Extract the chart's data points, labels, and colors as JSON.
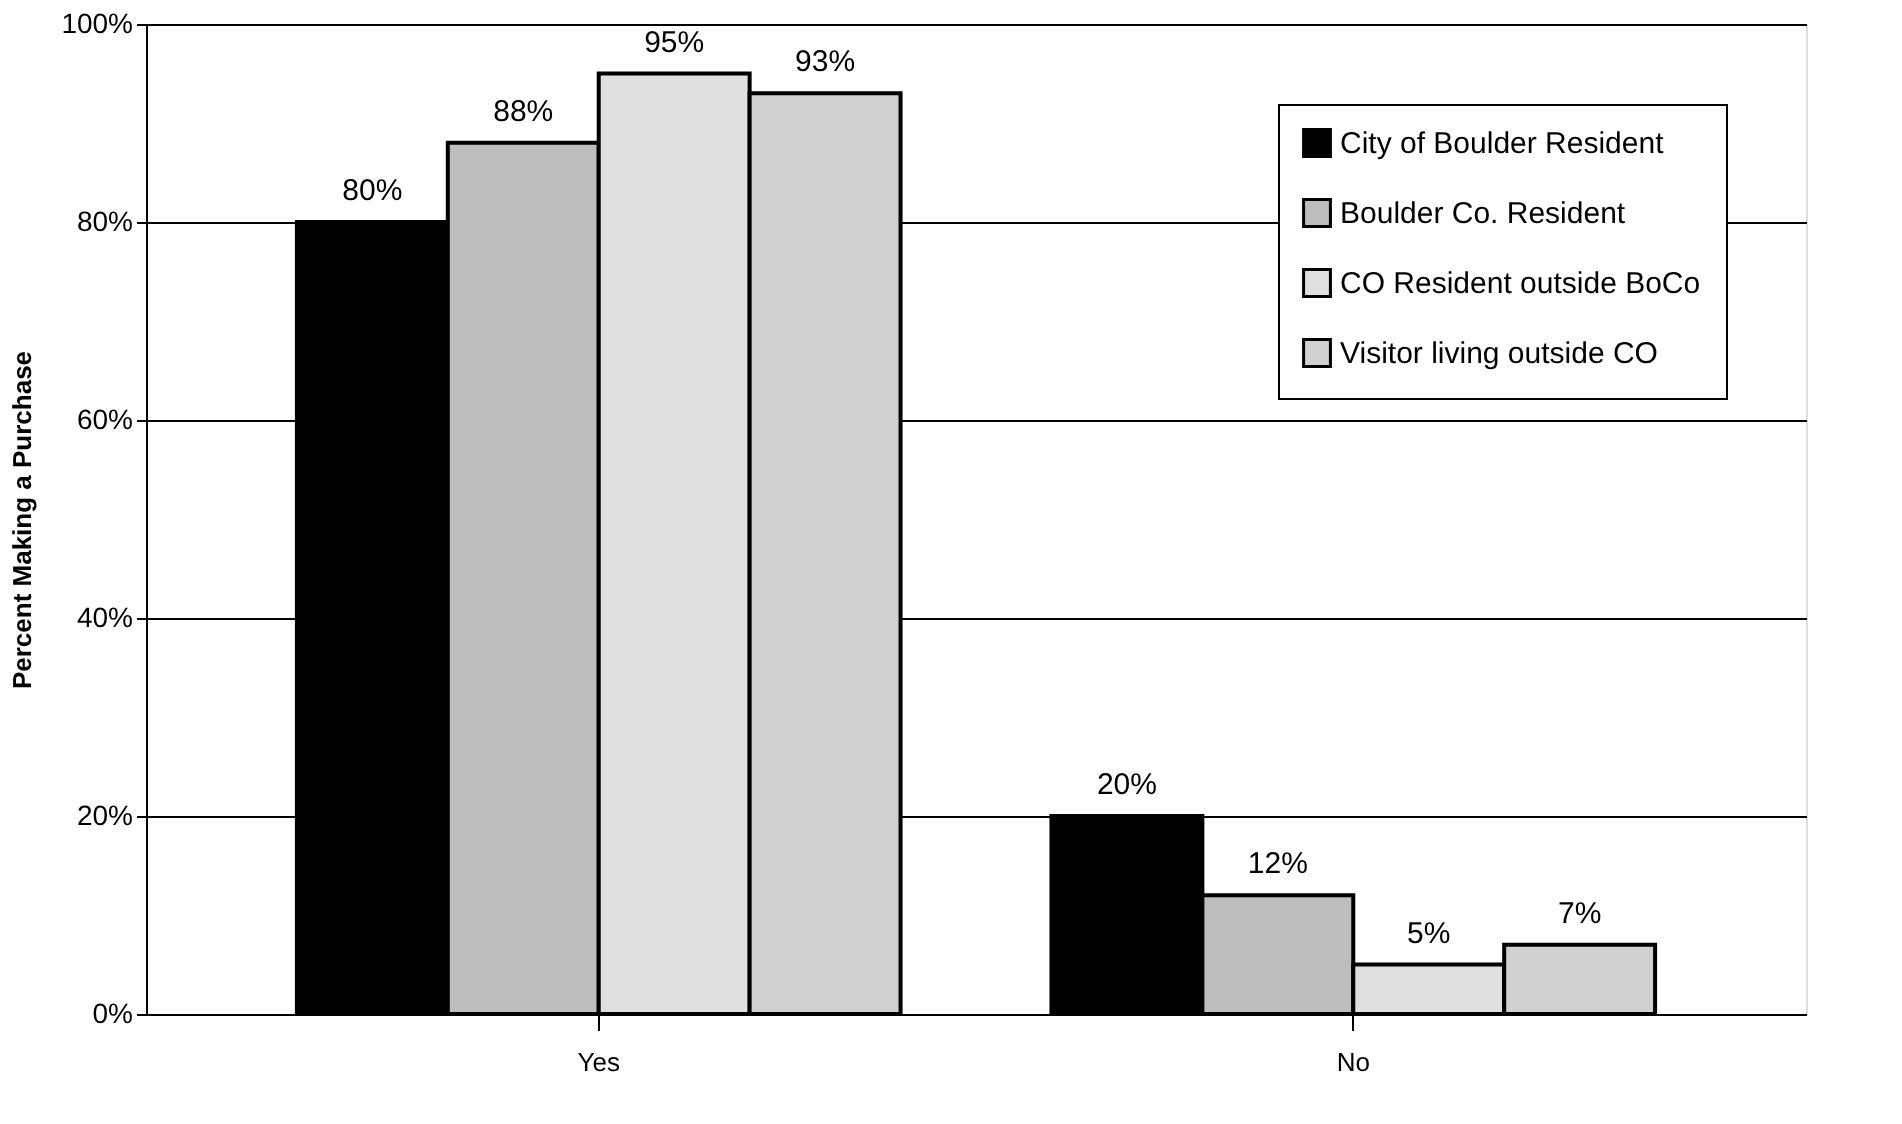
{
  "chart_data": {
    "type": "bar",
    "ylabel": "Percent Making a Purchase",
    "categories": [
      "Yes",
      "No"
    ],
    "series": [
      {
        "name": "City of Boulder Resident",
        "color": "#000000",
        "values": [
          80,
          20
        ]
      },
      {
        "name": "Boulder Co. Resident",
        "color": "#bdbdbd",
        "values": [
          88,
          12
        ]
      },
      {
        "name": "CO Resident outside BoCo",
        "color": "#e0e0e0",
        "values": [
          95,
          5
        ]
      },
      {
        "name": "Visitor living outside CO",
        "color": "#d0d0d0",
        "values": [
          93,
          7
        ]
      }
    ],
    "value_labels": [
      [
        "80%",
        "20%"
      ],
      [
        "88%",
        "12%"
      ],
      [
        "95%",
        "5%"
      ],
      [
        "93%",
        "7%"
      ]
    ],
    "ylim": [
      0,
      100
    ],
    "yticks": [
      {
        "value": 0,
        "label": "0%"
      },
      {
        "value": 20,
        "label": "20%"
      },
      {
        "value": 40,
        "label": "40%"
      },
      {
        "value": 60,
        "label": "60%"
      },
      {
        "value": 80,
        "label": "80%"
      },
      {
        "value": 100,
        "label": "100%"
      }
    ],
    "grid": "y",
    "legend": "top right"
  }
}
